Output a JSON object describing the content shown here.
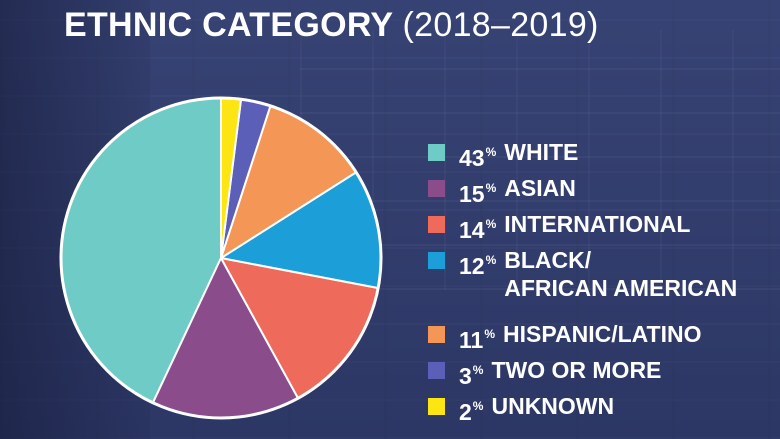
{
  "chart_data": {
    "type": "pie",
    "title": "ETHNIC CATEGORY",
    "subtitle": "(2018–2019)",
    "legend_position": "right",
    "slices": [
      {
        "label": "WHITE",
        "label_lines": [
          "WHITE"
        ],
        "value": 43,
        "pct": "43",
        "unit": "%",
        "color": "#6fcbc6"
      },
      {
        "label": "ASIAN",
        "label_lines": [
          "ASIAN"
        ],
        "value": 15,
        "pct": "15",
        "unit": "%",
        "color": "#8b4c8b"
      },
      {
        "label": "INTERNATIONAL",
        "label_lines": [
          "INTERNATIONAL"
        ],
        "value": 14,
        "pct": "14",
        "unit": "%",
        "color": "#ee6b5c"
      },
      {
        "label": "BLACK/ AFRICAN AMERICAN",
        "label_lines": [
          "BLACK/",
          "AFRICAN AMERICAN"
        ],
        "value": 12,
        "pct": "12",
        "unit": "%",
        "color": "#1c9fd9"
      },
      {
        "label": "HISPANIC/LATINO",
        "label_lines": [
          "HISPANIC/LATINO"
        ],
        "value": 11,
        "pct": "11",
        "unit": "%",
        "color": "#f39656"
      },
      {
        "label": "TWO OR MORE",
        "label_lines": [
          "TWO OR MORE"
        ],
        "value": 3,
        "pct": "3",
        "unit": "%",
        "color": "#5b5fb8"
      },
      {
        "label": "UNKNOWN",
        "label_lines": [
          "UNKNOWN"
        ],
        "value": 2,
        "pct": "2",
        "unit": "%",
        "color": "#fde514"
      }
    ],
    "pie_order": [
      0,
      1,
      2,
      3,
      4,
      5,
      6
    ],
    "start_direction": "top",
    "winding": "counter-clockwise",
    "slice_border_color": "#ffffff"
  }
}
